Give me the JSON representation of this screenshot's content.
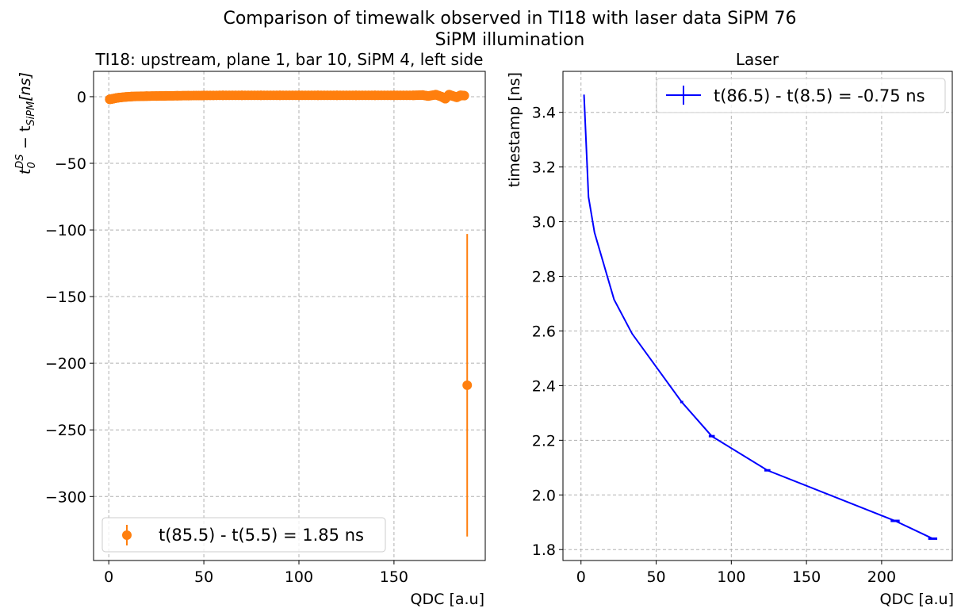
{
  "figure": {
    "title_line1": "Comparison of timewalk observed in TI18 with laser data SiPM 76",
    "title_line2": "SiPM illumination"
  },
  "chart_data": [
    {
      "type": "scatter",
      "title": "TI18: upstream, plane 1, bar 10, SiPM 4, left side",
      "xlabel": "QDC [a.u]",
      "ylabel_main": "t",
      "ylabel_sup": "DS",
      "ylabel_sub0": "0",
      "ylabel_minus": " − t",
      "ylabel_sub": "SiPM",
      "ylabel_tail": "[ns]",
      "xlim": [
        -8,
        198
      ],
      "ylim": [
        -348,
        19
      ],
      "xticks": [
        0,
        50,
        100,
        150
      ],
      "yticks": [
        0,
        -50,
        -100,
        -150,
        -200,
        -250,
        -300
      ],
      "ytick_labels": [
        "0",
        "−50",
        "−100",
        "−150",
        "−200",
        "−250",
        "−300"
      ],
      "grid": true,
      "legend_position": "lower-left",
      "series": [
        {
          "name": "t(85.5) - t(5.5) = 1.85 ns",
          "color": "#ff7f0e",
          "points": [
            {
              "x": 0.5,
              "y": -2.0
            },
            {
              "x": 2,
              "y": -1.6
            },
            {
              "x": 4,
              "y": -1.0
            },
            {
              "x": 6,
              "y": -0.6
            },
            {
              "x": 9,
              "y": -0.2
            },
            {
              "x": 12,
              "y": 0.1
            },
            {
              "x": 16,
              "y": 0.3
            },
            {
              "x": 20,
              "y": 0.4
            },
            {
              "x": 25,
              "y": 0.5
            },
            {
              "x": 30,
              "y": 0.6
            },
            {
              "x": 36,
              "y": 0.7
            },
            {
              "x": 42,
              "y": 0.8
            },
            {
              "x": 50,
              "y": 0.9
            },
            {
              "x": 60,
              "y": 1.0
            },
            {
              "x": 70,
              "y": 1.0
            },
            {
              "x": 80,
              "y": 1.0
            },
            {
              "x": 90,
              "y": 1.0
            },
            {
              "x": 100,
              "y": 1.0
            },
            {
              "x": 110,
              "y": 1.0
            },
            {
              "x": 120,
              "y": 1.0
            },
            {
              "x": 130,
              "y": 1.0
            },
            {
              "x": 140,
              "y": 1.0
            },
            {
              "x": 150,
              "y": 1.0
            },
            {
              "x": 160,
              "y": 1.0
            },
            {
              "x": 165,
              "y": 1.2
            },
            {
              "x": 168,
              "y": 0.5
            },
            {
              "x": 172,
              "y": 1.5
            },
            {
              "x": 175,
              "y": 0.0
            },
            {
              "x": 177,
              "y": -1.5
            },
            {
              "x": 179,
              "y": 1.5
            },
            {
              "x": 181,
              "y": 0.5
            },
            {
              "x": 183,
              "y": -0.5
            },
            {
              "x": 185,
              "y": 1.0
            },
            {
              "x": 187,
              "y": 0.8
            },
            {
              "x": 188.5,
              "y": -216.5,
              "yerr_low": -330,
              "yerr_high": -103
            }
          ]
        }
      ]
    },
    {
      "type": "line",
      "title": "Laser",
      "xlabel": "QDC [a.u]",
      "ylabel": "timestamp [ns]",
      "xlim": [
        -12,
        247
      ],
      "ylim": [
        1.76,
        3.55
      ],
      "xticks": [
        0,
        50,
        100,
        150,
        200
      ],
      "yticks": [
        1.8,
        2.0,
        2.2,
        2.4,
        2.6,
        2.8,
        3.0,
        3.2,
        3.4
      ],
      "ytick_labels": [
        "1.8",
        "2.0",
        "2.2",
        "2.4",
        "2.6",
        "2.8",
        "3.0",
        "3.2",
        "3.4"
      ],
      "grid": true,
      "legend_position": "upper-right",
      "series": [
        {
          "name": "t(86.5) - t(8.5) = -0.75 ns",
          "color": "#0000ff",
          "x": [
            2,
            5,
            9,
            22,
            34,
            67,
            87,
            124,
            209,
            234
          ],
          "y": [
            3.465,
            3.09,
            2.96,
            2.715,
            2.59,
            2.34,
            2.215,
            2.09,
            1.905,
            1.84
          ],
          "xerr": [
            0,
            0,
            0,
            0,
            0,
            1,
            2,
            2,
            3,
            3
          ]
        }
      ]
    }
  ]
}
